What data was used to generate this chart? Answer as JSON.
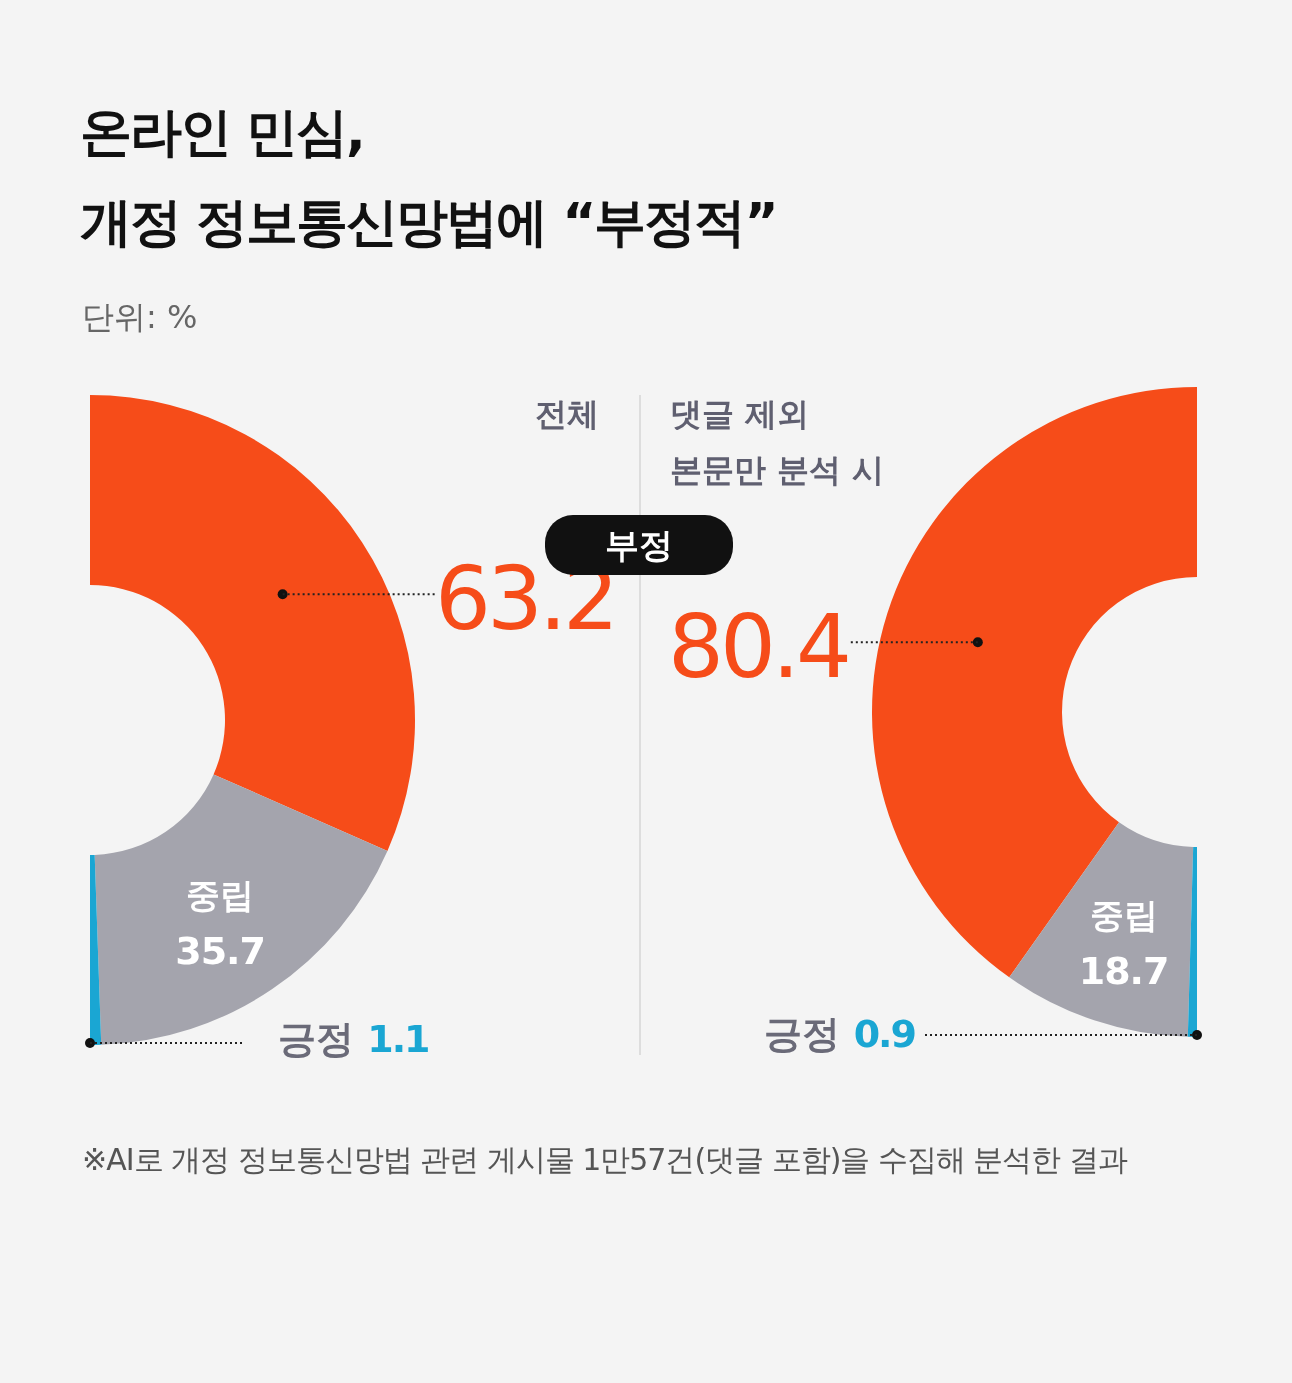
{
  "chart_data": [
    {
      "type": "donut",
      "title": "온라인 민심,\n개정 정보통신망법에 “부정적”",
      "subtitle": "단위: %",
      "annotations": [
        "전체",
        "※AI로 개정 정보통신망법 관련 게시물 1만57건(댓글 포함)을 수집해 분석한 결과"
      ],
      "categories": [
        "부정",
        "중립",
        "긍정"
      ],
      "values": [
        63.2,
        35.7,
        1.1
      ],
      "colors": [
        "#f64c19",
        "#a4a4ad",
        "#1aa6d3"
      ],
      "data_labels": true
    },
    {
      "type": "donut",
      "annotations": [
        "댓글 제외\n본문만 분석 시"
      ],
      "categories": [
        null,
        "중립",
        "긍정"
      ],
      "values": [
        80.4,
        18.7,
        0.9
      ],
      "colors": [
        "#f64c19",
        "#a4a4ad",
        "#1aa6d3"
      ],
      "data_labels": true
    }
  ]
}
